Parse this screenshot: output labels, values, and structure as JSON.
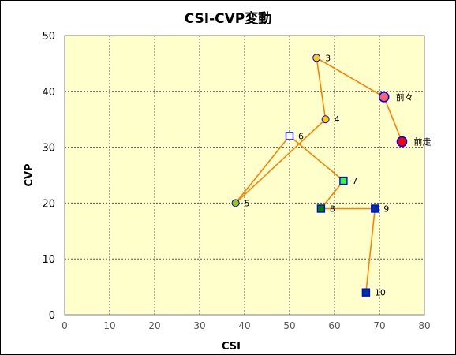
{
  "chart_data": {
    "type": "scatter",
    "title": "CSI-CVP変動",
    "xlabel": "CSI",
    "ylabel": "CVP",
    "xlim": [
      0,
      80
    ],
    "ylim": [
      0,
      50
    ],
    "xticks": [
      "0",
      "10",
      "20",
      "30",
      "40",
      "50",
      "60",
      "70",
      "80"
    ],
    "yticks": [
      "0",
      "10",
      "20",
      "30",
      "40",
      "50"
    ],
    "grid": true,
    "plot_background": "#ffffcc",
    "line_color": "#ff8000",
    "points": [
      {
        "label": "前走",
        "x": 75,
        "y": 31,
        "marker": "circle",
        "size": "large",
        "fill": "#ff0000",
        "stroke": "#0000ff"
      },
      {
        "label": "前々",
        "x": 71,
        "y": 39,
        "marker": "circle",
        "size": "large",
        "fill": "#ff6666",
        "stroke": "#0000ff"
      },
      {
        "label": "3",
        "x": 56,
        "y": 46,
        "marker": "circle",
        "size": "small",
        "fill": "#ffcc00",
        "stroke": "#0000ff"
      },
      {
        "label": "4",
        "x": 58,
        "y": 35,
        "marker": "circle",
        "size": "small",
        "fill": "#ffcc00",
        "stroke": "#0000ff"
      },
      {
        "label": "5",
        "x": 38,
        "y": 20,
        "marker": "circle",
        "size": "small",
        "fill": "#99cc00",
        "stroke": "#0000ff"
      },
      {
        "label": "6",
        "x": 50,
        "y": 32,
        "marker": "square",
        "size": "small",
        "fill": "#ffffff",
        "stroke": "#0000ff"
      },
      {
        "label": "7",
        "x": 62,
        "y": 24,
        "marker": "square",
        "size": "small",
        "fill": "#33ff33",
        "stroke": "#0000ff"
      },
      {
        "label": "8",
        "x": 57,
        "y": 19,
        "marker": "square",
        "size": "small",
        "fill": "#008000",
        "stroke": "#0000ff"
      },
      {
        "label": "9",
        "x": 69,
        "y": 19,
        "marker": "square",
        "size": "small",
        "fill": "#003399",
        "stroke": "#0000ff"
      },
      {
        "label": "10",
        "x": 67,
        "y": 4,
        "marker": "square",
        "size": "small",
        "fill": "#003399",
        "stroke": "#0000ff"
      }
    ]
  }
}
